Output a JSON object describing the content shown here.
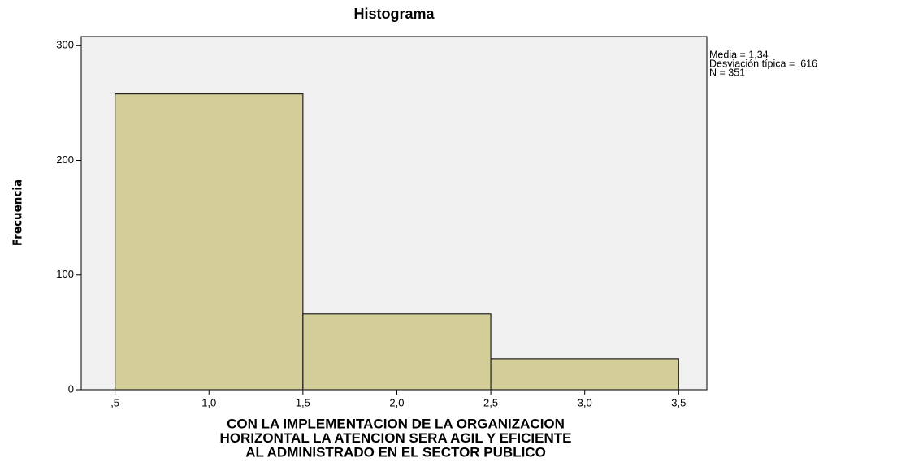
{
  "chart_data": {
    "type": "histogram",
    "title": "Histograma",
    "xlabel": [
      "CON LA IMPLEMENTACION DE LA ORGANIZACION",
      "HORIZONTAL LA ATENCION SERA AGIL Y EFICIENTE",
      "AL ADMINISTRADO EN EL SECTOR PUBLICO"
    ],
    "ylabel": "Frecuencia",
    "annotations": [
      "Media = 1,34",
      "Desviación típica = ,616",
      "N = 351"
    ],
    "bins": [
      0.5,
      1.5,
      2.5,
      3.5
    ],
    "counts": [
      258,
      66,
      27
    ],
    "color": "#d3ce97",
    "xlim": [
      0.32,
      3.65
    ],
    "xticks": [
      {
        "value": 0.5,
        "label": ",5"
      },
      {
        "value": 1.0,
        "label": "1,0"
      },
      {
        "value": 1.5,
        "label": "1,5"
      },
      {
        "value": 2.0,
        "label": "2,0"
      },
      {
        "value": 2.5,
        "label": "2,5"
      },
      {
        "value": 3.0,
        "label": "3,0"
      },
      {
        "value": 3.5,
        "label": "3,5"
      }
    ],
    "ylim": [
      0,
      308
    ],
    "yticks": [
      0,
      100,
      200,
      300
    ]
  }
}
